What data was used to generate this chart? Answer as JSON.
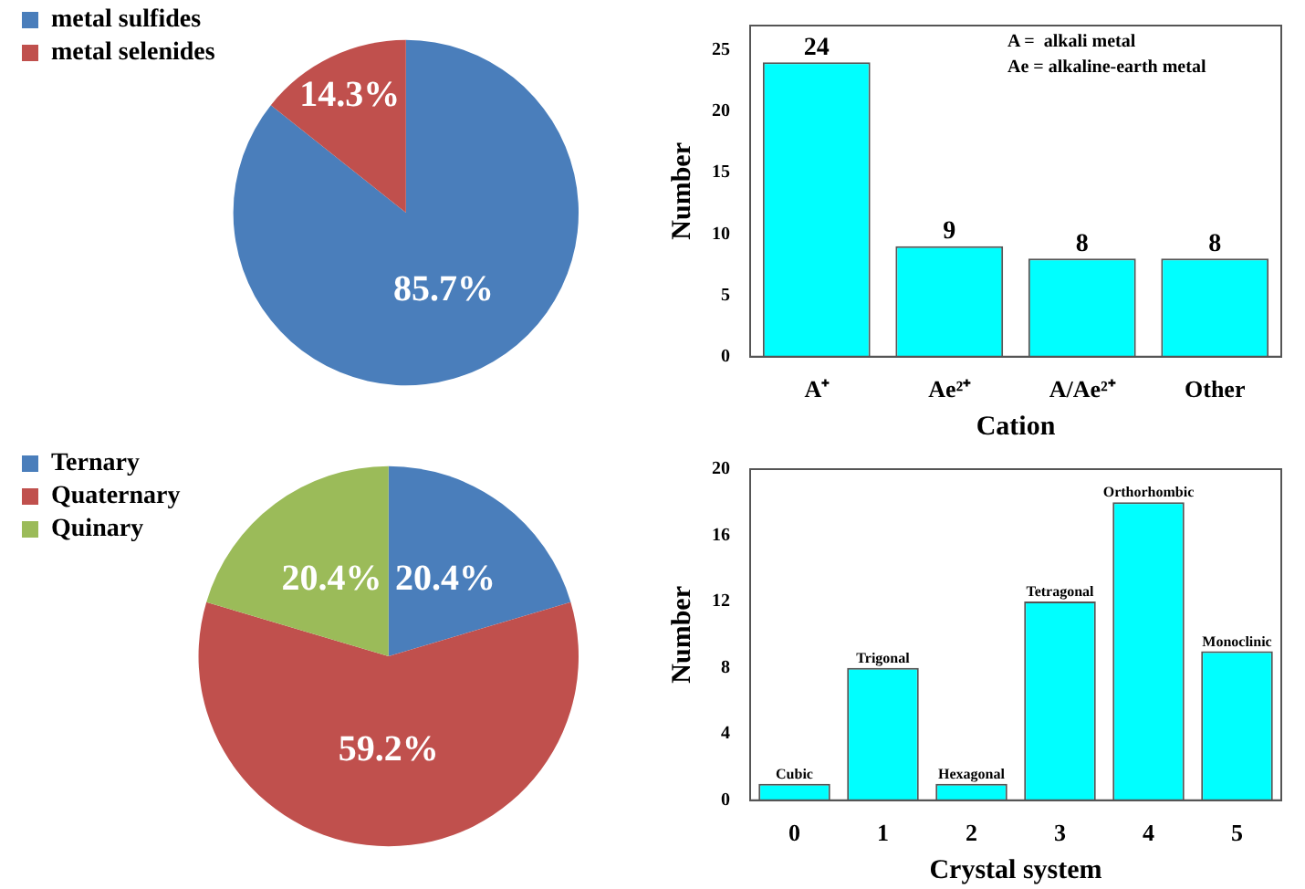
{
  "chart_data": [
    {
      "type": "pie",
      "categories": [
        "metal sulfides",
        "metal selenides"
      ],
      "values": [
        85.7,
        14.3
      ],
      "colors": [
        "#4a7ebb",
        "#c0504d"
      ],
      "value_labels": [
        "85.7%",
        "14.3%"
      ],
      "legend": "top left"
    },
    {
      "type": "bar",
      "categories": [
        "A⁺",
        "Ae²⁺",
        "A/Ae²⁺",
        "Other"
      ],
      "values": [
        24,
        9,
        8,
        8
      ],
      "color": "#00ffff",
      "xlabel": "Cation",
      "ylabel": "Number",
      "ylim": [
        0,
        27
      ],
      "yticks": [
        0,
        5,
        10,
        15,
        20,
        25
      ],
      "data_labels": true,
      "grid": false,
      "legend": false,
      "annotations": [
        "A =  alkali metal",
        "Ae = alkaline-earth metal"
      ]
    },
    {
      "type": "pie",
      "categories": [
        "Ternary",
        "Quaternary",
        "Quinary"
      ],
      "values": [
        20.4,
        59.2,
        20.4
      ],
      "colors": [
        "#4a7ebb",
        "#c0504d",
        "#9bbb59"
      ],
      "value_labels": [
        "20.4%",
        "59.2%",
        "20.4%"
      ],
      "legend": "top left"
    },
    {
      "type": "bar",
      "categories": [
        "0",
        "1",
        "2",
        "3",
        "4",
        "5"
      ],
      "values": [
        1,
        8,
        1,
        12,
        18,
        9
      ],
      "color": "#00ffff",
      "xlabel": "Crystal system",
      "ylabel": "Number",
      "ylim": [
        0,
        20
      ],
      "yticks": [
        0,
        4,
        8,
        12,
        16,
        20
      ],
      "value_labels": [
        "Cubic",
        "Trigonal",
        "Hexagonal",
        "Tetragonal",
        "Orthorhombic",
        "Monoclinic"
      ],
      "grid": false,
      "legend": false
    }
  ]
}
